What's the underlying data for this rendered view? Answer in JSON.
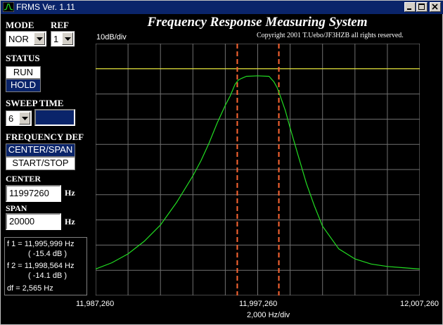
{
  "window": {
    "title": "FRMS Ver. 1.11",
    "app_title": "Frequency Response Measuring System",
    "copyright": "Copyright 2001 T.Uebo/JF3HZB all rights reserved."
  },
  "controls": {
    "mode_label": "MODE",
    "mode_value": "NOR",
    "ref_label": "REF",
    "ref_value": "1",
    "status_label": "STATUS",
    "run_label": "RUN",
    "hold_label": "HOLD",
    "sweep_label": "SWEEP TIME",
    "sweep_value": "6",
    "freq_def_label": "FREQUENCY DEF",
    "center_span_label": "CENTER/SPAN",
    "start_stop_label": "START/STOP",
    "center_label": "CENTER",
    "center_value": "11997260",
    "center_unit": "Hz",
    "span_label": "SPAN",
    "span_value": "20000",
    "span_unit": "Hz"
  },
  "markers": {
    "f1": "f 1 = 11,995,999 Hz",
    "f1_db": "( -15.4 dB )",
    "f2": "f 2 = 11,998,564 Hz",
    "f2_db": "( -14.1 dB )",
    "df": "df = 2,565 Hz"
  },
  "colors": {
    "title_bar": "#0a246a",
    "trace": "#22dd22",
    "reference_line": "#ffff33",
    "marker_lines": "#ff6633",
    "grid": "#707070"
  },
  "chart_data": {
    "type": "line",
    "ylabel": "10dB/div",
    "xlabel": "2,000 Hz/div",
    "x_ticks": [
      "11,987,260",
      "11,997,260",
      "12,007,260"
    ],
    "xlim": [
      11987260,
      12007260
    ],
    "ylim_div": [
      0,
      10
    ],
    "grid": true,
    "reference_level_div": 9,
    "markers_hz": [
      11995999,
      11998564
    ],
    "series": [
      {
        "x": [
          11987260,
          11988260,
          11989260,
          11990260,
          11991260,
          11992260,
          11993260,
          11993760,
          11994260,
          11994760,
          11995260,
          11995560,
          11995860,
          11996060,
          11996260,
          11996560,
          11997260,
          11997960,
          11998260,
          11998460,
          11998660,
          11998960,
          11999260,
          11999760,
          12000260,
          12000760,
          12001260,
          12002260,
          12003260,
          12004260,
          12005260,
          12006260,
          12007260
        ],
        "y": [
          1.05,
          1.3,
          1.65,
          2.15,
          2.8,
          3.7,
          4.75,
          5.35,
          6.05,
          6.85,
          7.55,
          7.92,
          8.38,
          8.55,
          8.62,
          8.7,
          8.72,
          8.7,
          8.48,
          8.25,
          7.9,
          7.35,
          6.65,
          5.55,
          4.45,
          3.55,
          2.75,
          1.85,
          1.45,
          1.25,
          1.15,
          1.1,
          1.05
        ]
      }
    ]
  }
}
